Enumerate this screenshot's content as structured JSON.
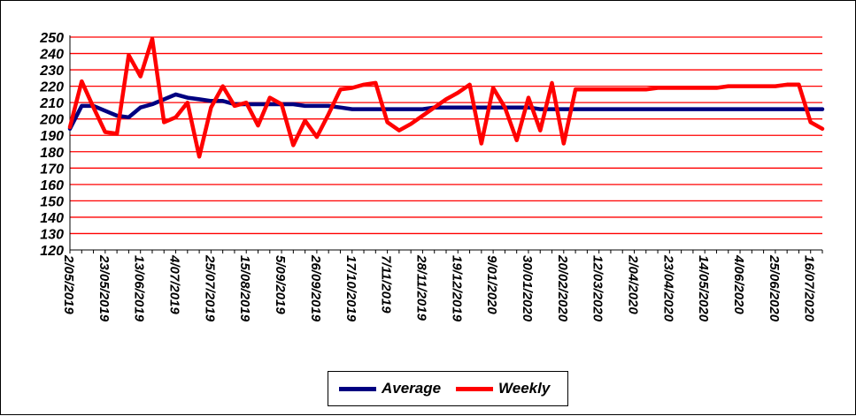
{
  "chart_data": {
    "type": "line",
    "x": [
      "2/05/2019",
      "9/05/2019",
      "16/05/2019",
      "23/05/2019",
      "30/05/2019",
      "6/06/2019",
      "13/06/2019",
      "20/06/2019",
      "27/06/2019",
      "4/07/2019",
      "11/07/2019",
      "18/07/2019",
      "25/07/2019",
      "1/08/2019",
      "8/08/2019",
      "15/08/2019",
      "22/08/2019",
      "29/08/2019",
      "5/09/2019",
      "12/09/2019",
      "19/09/2019",
      "26/09/2019",
      "3/10/2019",
      "10/10/2019",
      "17/10/2019",
      "24/10/2019",
      "31/10/2019",
      "7/11/2019",
      "14/11/2019",
      "21/11/2019",
      "28/11/2019",
      "5/12/2019",
      "12/12/2019",
      "19/12/2019",
      "26/12/2019",
      "2/01/2020",
      "9/01/2020",
      "16/01/2020",
      "23/01/2020",
      "30/01/2020",
      "6/02/2020",
      "13/02/2020",
      "20/02/2020",
      "27/02/2020",
      "5/03/2020",
      "12/03/2020",
      "19/03/2020",
      "26/03/2020",
      "2/04/2020",
      "9/04/2020",
      "16/04/2020",
      "23/04/2020",
      "30/04/2020",
      "7/05/2020",
      "14/05/2020",
      "21/05/2020",
      "28/05/2020",
      "4/06/2020",
      "11/06/2020",
      "18/06/2020",
      "25/06/2020",
      "2/07/2020",
      "9/07/2020",
      "16/07/2020",
      "23/07/2020"
    ],
    "x_tick_labels": [
      "2/05/2019",
      "23/05/2019",
      "13/06/2019",
      "4/07/2019",
      "25/07/2019",
      "15/08/2019",
      "5/09/2019",
      "26/09/2019",
      "17/10/2019",
      "7/11/2019",
      "28/11/2019",
      "19/12/2019",
      "9/01/2020",
      "30/01/2020",
      "20/02/2020",
      "12/03/2020",
      "2/04/2020",
      "23/04/2020",
      "14/05/2020",
      "4/06/2020",
      "25/06/2020",
      "16/07/2020"
    ],
    "x_tick_labels_display": [
      "2/05/2019",
      "23/05/2019",
      "13/06/2019",
      "4/07/2019",
      "25/07/2019",
      "15/08/2019",
      "5/09/2019",
      "26/09/2019",
      "17/10/2019",
      "7/11/2019",
      "28/11/2019",
      "19/12/2019",
      "9/01/2020",
      "30/01/2020",
      "20/02/2020",
      "12/03/2020",
      "2/04/2020",
      "23/04/2020",
      "14/05/2020",
      "4/06/2020",
      "25/06/2020",
      "16/07/2020"
    ],
    "series": [
      {
        "name": "Average",
        "color": "#000080",
        "values": [
          194,
          208,
          208,
          205,
          202,
          201,
          207,
          209,
          212,
          215,
          213,
          212,
          211,
          211,
          209,
          209,
          209,
          209,
          209,
          209,
          208,
          208,
          208,
          207,
          206,
          206,
          206,
          206,
          206,
          206,
          206,
          207,
          207,
          207,
          207,
          207,
          207,
          207,
          207,
          207,
          206,
          206,
          206,
          206,
          206,
          206,
          206,
          206,
          206,
          206,
          206,
          206,
          206,
          206,
          206,
          206,
          206,
          206,
          206,
          206,
          206,
          206,
          206,
          206,
          206
        ]
      },
      {
        "name": "Weekly",
        "color": "#ff0000",
        "values": [
          195,
          223,
          207,
          192,
          191,
          239,
          226,
          249,
          198,
          201,
          210,
          177,
          207,
          220,
          208,
          210,
          196,
          213,
          209,
          184,
          199,
          189,
          203,
          218,
          219,
          221,
          222,
          198,
          193,
          197,
          202,
          207,
          212,
          216,
          221,
          185,
          219,
          207,
          187,
          213,
          193,
          222,
          185,
          218,
          218,
          218,
          218,
          218,
          218,
          218,
          219,
          219,
          219,
          219,
          219,
          219,
          220,
          220,
          220,
          220,
          220,
          221,
          221,
          198,
          194
        ]
      }
    ],
    "ylim": [
      120,
      250
    ],
    "yticks": [
      120,
      130,
      140,
      150,
      160,
      170,
      180,
      190,
      200,
      210,
      220,
      230,
      240,
      250
    ],
    "grid": true,
    "grid_color": "#ff0000",
    "legend": "bottom-center",
    "title": "",
    "xlabel": "",
    "ylabel": ""
  },
  "legend": {
    "average_label": "Average",
    "weekly_label": "Weekly"
  }
}
